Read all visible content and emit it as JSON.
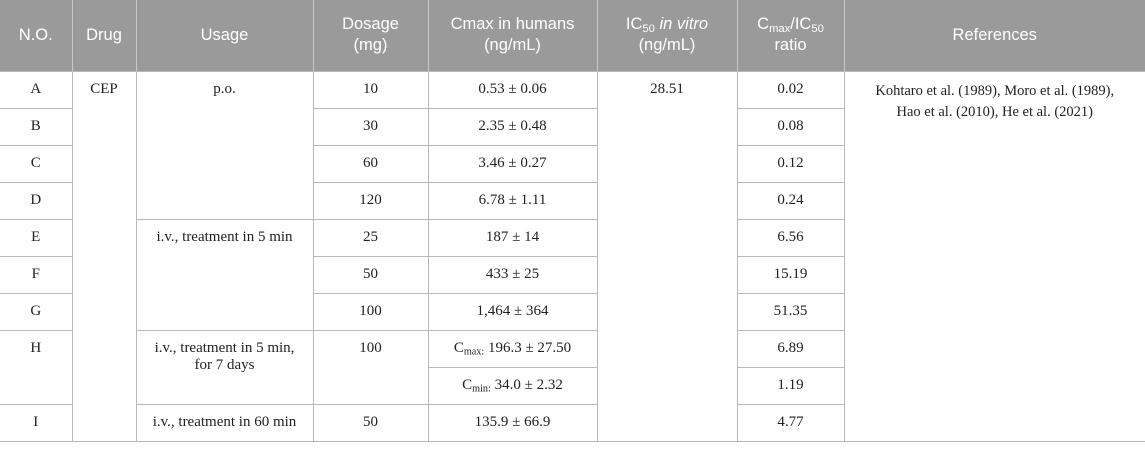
{
  "header": {
    "no": "N.O.",
    "drug": "Drug",
    "usage": "Usage",
    "dosage": [
      "Dosage",
      "(mg)"
    ],
    "cmax_humans": [
      "Cmax in humans",
      "(ng/mL)"
    ],
    "ic50": {
      "main": "IC",
      "sub": "50",
      "ital": " in vitro",
      "unit": "(ng/mL)"
    },
    "ratio": {
      "c": "C",
      "csub": "max",
      "slash": "/IC",
      "ssub": "50",
      "word": "ratio"
    },
    "references": "References"
  },
  "drug": "CEP",
  "ic50_value": "28.51",
  "references": [
    "Kohtaro et al. (1989), Moro et al. (1989),",
    "Hao et al. (2010), He et al. (2021)"
  ],
  "usages": {
    "po": "p.o.",
    "iv5": "i.v., treatment in 5 min",
    "iv5_7d": [
      "i.v., treatment in 5 min,",
      "for 7 days"
    ],
    "iv60": "i.v., treatment in 60 min"
  },
  "rows": [
    {
      "no": "A",
      "dosage": "10",
      "cmax": "0.53 ± 0.06",
      "ratio": "0.02"
    },
    {
      "no": "B",
      "dosage": "30",
      "cmax": "2.35 ± 0.48",
      "ratio": "0.08"
    },
    {
      "no": "C",
      "dosage": "60",
      "cmax": "3.46 ± 0.27",
      "ratio": "0.12"
    },
    {
      "no": "D",
      "dosage": "120",
      "cmax": "6.78 ± 1.11",
      "ratio": "0.24"
    },
    {
      "no": "E",
      "dosage": "25",
      "cmax": "187 ± 14",
      "ratio": "6.56"
    },
    {
      "no": "F",
      "dosage": "50",
      "cmax": "433 ± 25",
      "ratio": "15.19"
    },
    {
      "no": "G",
      "dosage": "100",
      "cmax": "1,464 ± 364",
      "ratio": "51.35"
    },
    {
      "no": "H",
      "dosage": "100",
      "cmax_a": {
        "c": "C",
        "sub": "max:",
        "value": " 196.3 ± 27.50"
      },
      "ratio_a": "6.89",
      "cmax_b": {
        "c": "C",
        "sub": "min:",
        "value": " 34.0 ± 2.32"
      },
      "ratio_b": "1.19"
    },
    {
      "no": "I",
      "dosage": "50",
      "cmax": "135.9 ± 66.9",
      "ratio": "4.77"
    }
  ]
}
